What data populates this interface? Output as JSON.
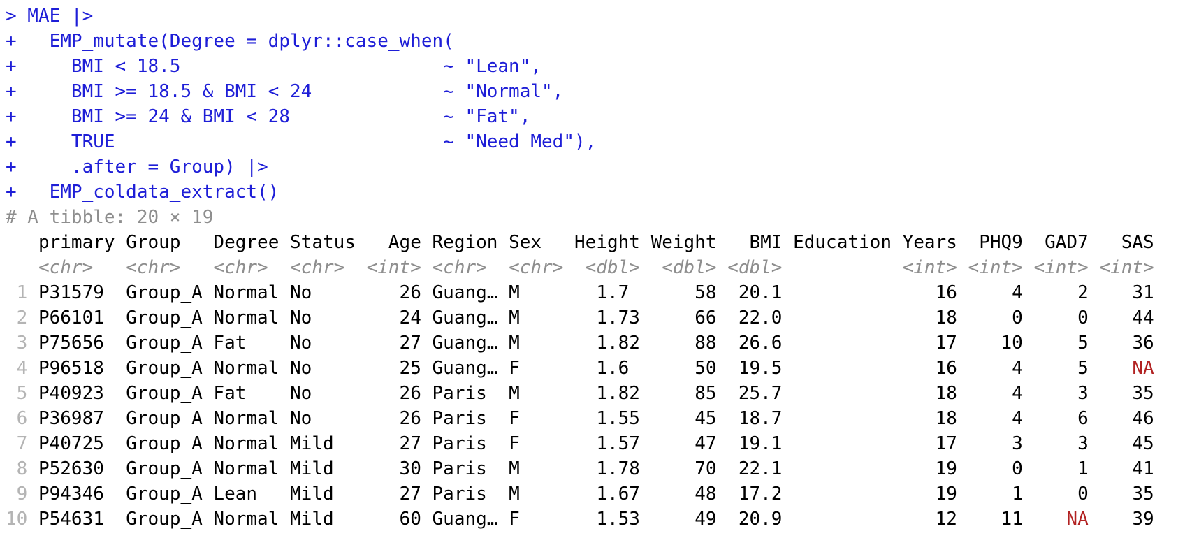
{
  "colors": {
    "code_blue": "#1E1ED7",
    "muted_gray": "#8E8E8E",
    "row_number_gray": "#B4B4B4",
    "na_red": "#B22222",
    "text_black": "#000000"
  },
  "console": {
    "code": {
      "lines": [
        "> MAE |>",
        "+   EMP_mutate(Degree = dplyr::case_when(",
        "+     BMI < 18.5                        ~ \"Lean\",",
        "+     BMI >= 18.5 & BMI < 24            ~ \"Normal\",",
        "+     BMI >= 24 & BMI < 28              ~ \"Fat\",",
        "+     TRUE                              ~ \"Need Med\"),",
        "+     .after = Group) |>",
        "+   EMP_coldata_extract()"
      ]
    },
    "table": {
      "summary": "# A tibble: 20 × 19",
      "row_number_width": 2,
      "na_token": "NA",
      "columns": [
        {
          "label": "primary",
          "type": "<chr>",
          "align": "left",
          "width": 7
        },
        {
          "label": "Group",
          "type": "<chr>",
          "align": "left",
          "width": 7
        },
        {
          "label": "Degree",
          "type": "<chr>",
          "align": "left",
          "width": 6
        },
        {
          "label": "Status",
          "type": "<chr>",
          "align": "left",
          "width": 6
        },
        {
          "label": "Age",
          "type": "<int>",
          "align": "right",
          "width": 5
        },
        {
          "label": "Region",
          "type": "<chr>",
          "align": "left",
          "width": 6
        },
        {
          "label": "Sex",
          "type": "<chr>",
          "align": "left",
          "width": 5
        },
        {
          "label": "Height",
          "type": "<dbl>",
          "align": "right",
          "width": 6
        },
        {
          "label": "Weight",
          "type": "<dbl>",
          "align": "right",
          "width": 6
        },
        {
          "label": "BMI",
          "type": "<dbl>",
          "align": "right",
          "width": 5
        },
        {
          "label": "Education_Years",
          "type": "<int>",
          "align": "right",
          "width": 15
        },
        {
          "label": "PHQ9",
          "type": "<int>",
          "align": "right",
          "width": 5
        },
        {
          "label": "GAD7",
          "type": "<int>",
          "align": "right",
          "width": 5
        },
        {
          "label": "SAS",
          "type": "<int>",
          "align": "right",
          "width": 5
        }
      ],
      "rows": [
        {
          "n": "1",
          "cells": [
            "P31579",
            "Group_A",
            "Normal",
            "No",
            "26",
            "Guang…",
            "M",
            "1.7 ",
            "58",
            "20.1",
            "16",
            "4",
            "2",
            "31"
          ]
        },
        {
          "n": "2",
          "cells": [
            "P66101",
            "Group_A",
            "Normal",
            "No",
            "24",
            "Guang…",
            "M",
            "1.73",
            "66",
            "22.0",
            "18",
            "0",
            "0",
            "44"
          ]
        },
        {
          "n": "3",
          "cells": [
            "P75656",
            "Group_A",
            "Fat",
            "No",
            "27",
            "Guang…",
            "M",
            "1.82",
            "88",
            "26.6",
            "17",
            "10",
            "5",
            "36"
          ]
        },
        {
          "n": "4",
          "cells": [
            "P96518",
            "Group_A",
            "Normal",
            "No",
            "25",
            "Guang…",
            "F",
            "1.6 ",
            "50",
            "19.5",
            "16",
            "4",
            "5",
            "NA"
          ]
        },
        {
          "n": "5",
          "cells": [
            "P40923",
            "Group_A",
            "Fat",
            "No",
            "26",
            "Paris",
            "M",
            "1.82",
            "85",
            "25.7",
            "18",
            "4",
            "3",
            "35"
          ]
        },
        {
          "n": "6",
          "cells": [
            "P36987",
            "Group_A",
            "Normal",
            "No",
            "26",
            "Paris",
            "F",
            "1.55",
            "45",
            "18.7",
            "18",
            "4",
            "6",
            "46"
          ]
        },
        {
          "n": "7",
          "cells": [
            "P40725",
            "Group_A",
            "Normal",
            "Mild",
            "27",
            "Paris",
            "F",
            "1.57",
            "47",
            "19.1",
            "17",
            "3",
            "3",
            "45"
          ]
        },
        {
          "n": "8",
          "cells": [
            "P52630",
            "Group_A",
            "Normal",
            "Mild",
            "30",
            "Paris",
            "M",
            "1.78",
            "70",
            "22.1",
            "19",
            "0",
            "1",
            "41"
          ]
        },
        {
          "n": "9",
          "cells": [
            "P94346",
            "Group_A",
            "Lean",
            "Mild",
            "27",
            "Paris",
            "M",
            "1.67",
            "48",
            "17.2",
            "19",
            "1",
            "0",
            "35"
          ]
        },
        {
          "n": "10",
          "cells": [
            "P54631",
            "Group_A",
            "Normal",
            "Mild",
            "60",
            "Guang…",
            "F",
            "1.53",
            "49",
            "20.9",
            "12",
            "11",
            "NA",
            "39"
          ]
        }
      ]
    }
  }
}
